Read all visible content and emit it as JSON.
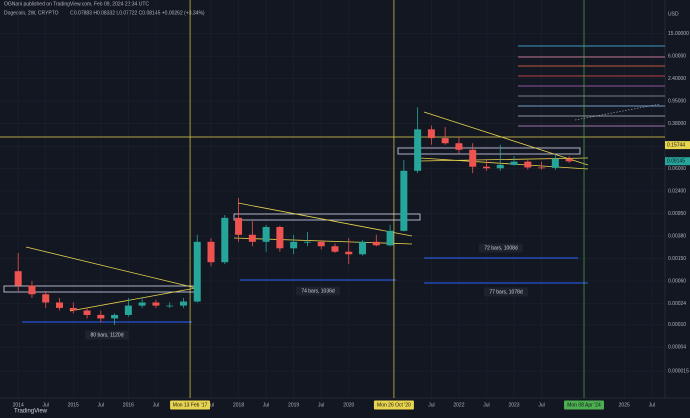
{
  "chart_data": {
    "type": "candlestick",
    "publisher": "OGNani published on TradingView.com, Feb 09, 2024 22:34 UTC",
    "symbol": "Dogecoin, 2W, CRYPTO",
    "quote": "O0.07883 H0.08332 L0.07722 C0.08145 +0.00262 (+3.34%)",
    "currency": "USD",
    "brand": "TradingView",
    "log_scale": true,
    "grid": true,
    "up_color": "#26a69a",
    "down_color": "#ef5350",
    "x": [
      2014.0,
      2014.25,
      2014.5,
      2014.75,
      2015.0,
      2015.25,
      2015.5,
      2015.75,
      2016.0,
      2016.25,
      2016.5,
      2016.75,
      2017.0,
      2017.25,
      2017.5,
      2017.75,
      2018.0,
      2018.25,
      2018.5,
      2018.75,
      2019.0,
      2019.25,
      2019.5,
      2019.75,
      2020.0,
      2020.25,
      2020.5,
      2020.75,
      2021.0,
      2021.25,
      2021.5,
      2021.75,
      2022.0,
      2022.25,
      2022.5,
      2022.75,
      2023.0,
      2023.25,
      2023.5,
      2023.75,
      2024.0
    ],
    "open": [
      0.0009,
      0.0005,
      0.00035,
      0.00025,
      0.0002,
      0.00018,
      0.00015,
      0.00013,
      0.00015,
      0.00022,
      0.00025,
      0.00022,
      0.00022,
      0.00026,
      0.003,
      0.0013,
      0.008,
      0.004,
      0.003,
      0.0055,
      0.0023,
      0.003,
      0.003,
      0.0025,
      0.002,
      0.0018,
      0.003,
      0.0026,
      0.0047,
      0.055,
      0.3,
      0.21,
      0.17,
      0.13,
      0.065,
      0.061,
      0.07,
      0.08,
      0.063,
      0.062,
      0.09
    ],
    "high": [
      0.0019,
      0.0006,
      0.0004,
      0.0003,
      0.00025,
      0.0002,
      0.00018,
      0.00016,
      0.0003,
      0.0003,
      0.00028,
      0.00025,
      0.0003,
      0.004,
      0.0035,
      0.009,
      0.018,
      0.007,
      0.006,
      0.0058,
      0.004,
      0.0045,
      0.0032,
      0.0028,
      0.0035,
      0.0032,
      0.004,
      0.006,
      0.085,
      0.74,
      0.35,
      0.33,
      0.22,
      0.17,
      0.085,
      0.16,
      0.1,
      0.085,
      0.08,
      0.11,
      0.1
    ],
    "low": [
      0.0004,
      0.0003,
      0.0002,
      0.00018,
      0.00016,
      0.00013,
      0.00011,
      0.0001,
      0.00014,
      0.0002,
      0.0002,
      0.0002,
      0.0002,
      0.00025,
      0.0011,
      0.0012,
      0.003,
      0.0025,
      0.002,
      0.002,
      0.0018,
      0.0025,
      0.0022,
      0.0019,
      0.0012,
      0.0017,
      0.0025,
      0.0025,
      0.0046,
      0.05,
      0.16,
      0.16,
      0.11,
      0.05,
      0.055,
      0.055,
      0.068,
      0.058,
      0.058,
      0.057,
      0.076
    ],
    "close": [
      0.0005,
      0.00035,
      0.00025,
      0.0002,
      0.00018,
      0.00015,
      0.00013,
      0.00015,
      0.00022,
      0.00025,
      0.00022,
      0.00022,
      0.00026,
      0.003,
      0.0013,
      0.008,
      0.004,
      0.003,
      0.0055,
      0.0023,
      0.003,
      0.003,
      0.0025,
      0.002,
      0.0018,
      0.003,
      0.0026,
      0.0047,
      0.055,
      0.3,
      0.21,
      0.17,
      0.13,
      0.065,
      0.061,
      0.07,
      0.08,
      0.063,
      0.062,
      0.09,
      0.081
    ],
    "xlim": [
      2013.67,
      2025.74
    ],
    "ylim": [
      5e-06,
      60
    ],
    "yticks": [
      {
        "value": 15,
        "label": "15.00000"
      },
      {
        "value": 6,
        "label": "6.00000"
      },
      {
        "value": 2.4,
        "label": "2.40000"
      },
      {
        "value": 0.95,
        "label": "0.95000"
      },
      {
        "value": 0.38,
        "label": "0.38000"
      },
      {
        "value": 0.15,
        "label": "0.15000"
      },
      {
        "value": 0.06,
        "label": "0.06000"
      },
      {
        "value": 0.024,
        "label": "0.02400"
      },
      {
        "value": 0.0095,
        "label": "0.00950"
      },
      {
        "value": 0.0038,
        "label": "0.00380"
      },
      {
        "value": 0.0015,
        "label": "0.00150"
      },
      {
        "value": 0.0006,
        "label": "0.00060"
      },
      {
        "value": 0.00024,
        "label": "0.00024"
      },
      {
        "value": 0.0001,
        "label": "0.00010"
      },
      {
        "value": 4e-05,
        "label": "0.00004"
      },
      {
        "value": 1.5e-05,
        "label": "0.000015"
      }
    ],
    "xticks": [
      2014,
      {
        "value": 2014.5,
        "label": "Jul"
      },
      2015,
      {
        "value": 2015.5,
        "label": "Jul"
      },
      2016,
      {
        "value": 2016.5,
        "label": "Jul"
      },
      {
        "value": 2017.5,
        "label": "Jul"
      },
      2018,
      {
        "value": 2018.5,
        "label": "Jul"
      },
      2019,
      {
        "value": 2019.5,
        "label": "Jul"
      },
      2020,
      {
        "value": 2021.5,
        "label": "Jul"
      },
      2022,
      {
        "value": 2022.5,
        "label": "Jul"
      },
      2023,
      {
        "value": 2023.5,
        "label": "Jul"
      },
      2025,
      {
        "value": 2025.5,
        "label": "Jul"
      }
    ],
    "xmarkers": [
      {
        "value": 2017.12,
        "label": "Mon 13 Feb '17",
        "color": "#e8d44d"
      },
      {
        "value": 2020.82,
        "label": "Mon 26 Oct '20",
        "color": "#e8d44d"
      },
      {
        "value": 2024.27,
        "label": "Mon 08 Apr '24",
        "color": "#4caf50"
      }
    ],
    "price_labels": [
      {
        "value": 0.15744,
        "label": "0.15744",
        "color": "#e8d44d"
      },
      {
        "value": 0.08145,
        "label": "0.08145",
        "color": "#26a69a"
      }
    ],
    "measures": [
      "80 bars, 1120d",
      "74 bars, 1036d",
      "72 bars, 1008d",
      "77 bars, 1078d"
    ]
  }
}
